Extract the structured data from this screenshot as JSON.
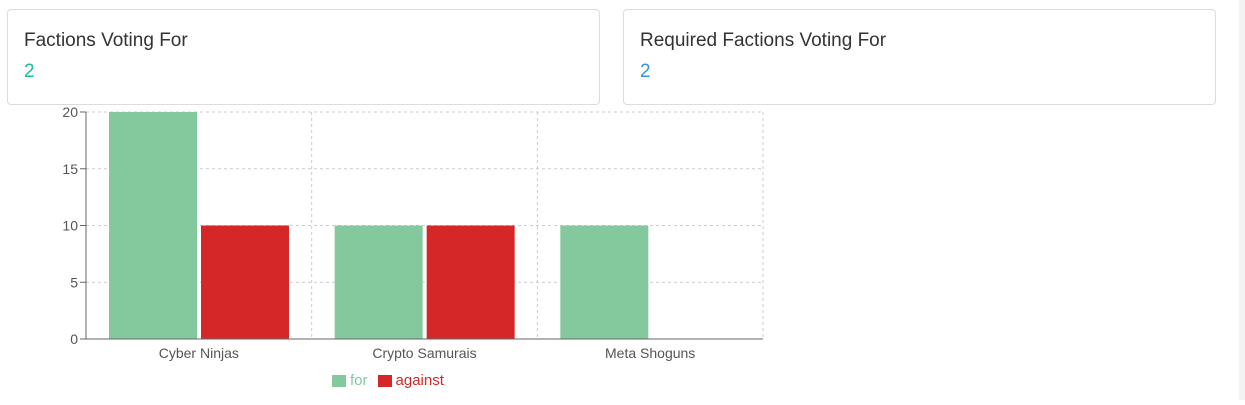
{
  "cards": {
    "voting_for": {
      "title": "Factions Voting For",
      "value": "2",
      "value_color": "#1abc9c"
    },
    "required_voting_for": {
      "title": "Required Factions Voting For",
      "value": "2",
      "value_color": "#3498db"
    }
  },
  "chart_data": {
    "type": "bar",
    "categories": [
      "Cyber Ninjas",
      "Crypto Samurais",
      "Meta Shoguns"
    ],
    "series": [
      {
        "name": "for",
        "values": [
          20,
          10,
          10
        ],
        "color": "#84c99e"
      },
      {
        "name": "against",
        "values": [
          10,
          10,
          0
        ],
        "color": "#d62728"
      }
    ],
    "ylim": [
      0,
      20
    ],
    "yticks": [
      0,
      5,
      10,
      15,
      20
    ],
    "grid": true,
    "legend": "bottom-center"
  }
}
